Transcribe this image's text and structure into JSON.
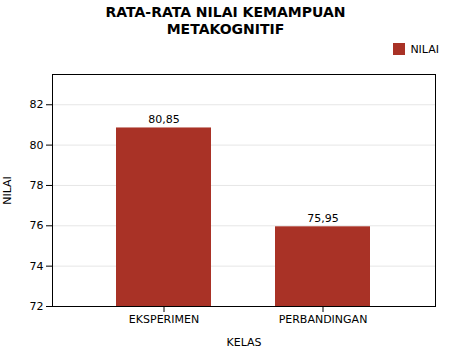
{
  "chart_data": {
    "type": "bar",
    "title": "RATA-RATA NILAI KEMAMPUAN\nMETAKOGNITIF",
    "categories": [
      "EKSPERIMEN",
      "PERBANDINGAN"
    ],
    "series": [
      {
        "name": "NILAI",
        "color": "#A93226",
        "values": [
          80.85,
          75.95
        ],
        "value_labels": [
          "80,85",
          "75,95"
        ]
      }
    ],
    "xlabel": "KELAS",
    "ylabel": "NILAI",
    "ylim": [
      72,
      83.5
    ],
    "yticks": [
      72,
      74,
      76,
      78,
      80,
      82
    ],
    "grid": true,
    "legend": "right",
    "data_labels": true
  }
}
